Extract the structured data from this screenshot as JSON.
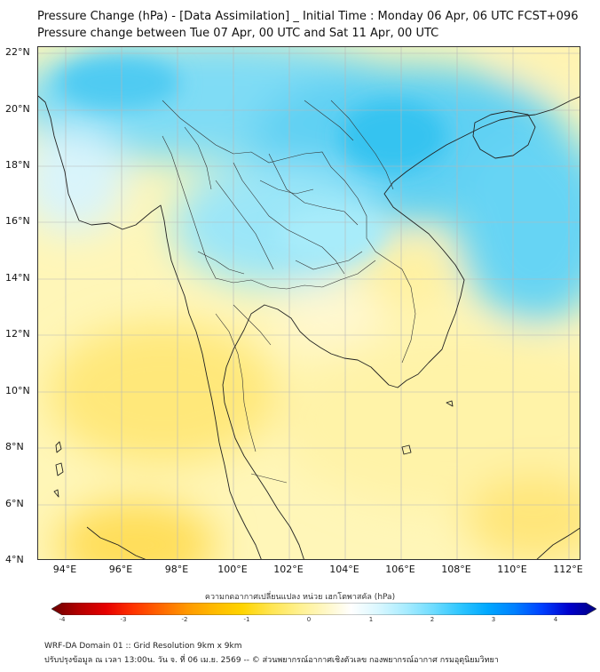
{
  "header": {
    "title_line1": "Pressure Change (hPa) - [Data Assimilation] _ Initial Time : Monday 06 Apr, 06 UTC FCST+096",
    "title_line2": "Pressure change between Tue 07 Apr, 00 UTC and Sat 11 Apr, 00 UTC"
  },
  "map": {
    "lat_labels": [
      "22°N",
      "20°N",
      "18°N",
      "16°N",
      "14°N",
      "12°N",
      "10°N",
      "8°N",
      "6°N",
      "4°N"
    ],
    "lon_labels": [
      "94°E",
      "96°E",
      "98°E",
      "100°E",
      "102°E",
      "104°E",
      "106°E",
      "108°E",
      "110°E",
      "112°E"
    ]
  },
  "colorbar": {
    "title": "ความกดอากาศเปลี่ยนแปลง หน่วย เฮกโตพาสคัล (hPa)",
    "ticks": [
      "-4",
      "-3",
      "-2",
      "-1",
      "0",
      "1",
      "2",
      "3",
      "4"
    ],
    "colors": [
      "#6a0000",
      "#b30000",
      "#e60000",
      "#ff3300",
      "#ff6600",
      "#ff9900",
      "#ffbb00",
      "#ffd400",
      "#ffe44d",
      "#fff08a",
      "#fff7c2",
      "#ffffff",
      "#d9f7ff",
      "#a8ecff",
      "#6fdcff",
      "#2ec6ff",
      "#00a8ff",
      "#0080ff",
      "#0040ff",
      "#0000cc",
      "#000080"
    ]
  },
  "footer": {
    "line1": "WRF-DA Domain 01 :: Grid Resolution 9km x 9km",
    "line2": "ปรับปรุงข้อมูล ณ เวลา 13:00น. วัน จ. ที่ 06 เม.ย. 2569 -- © ส่วนพยากรณ์อากาศเชิงตัวเลข กองพยากรณ์อากาศ กรมอุตุนิยมวิทยา"
  }
}
